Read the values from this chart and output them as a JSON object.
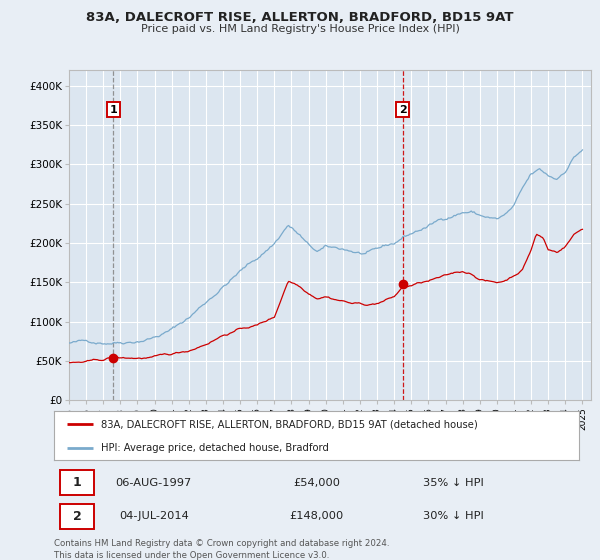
{
  "title": "83A, DALECROFT RISE, ALLERTON, BRADFORD, BD15 9AT",
  "subtitle": "Price paid vs. HM Land Registry's House Price Index (HPI)",
  "bg_color": "#e8eef5",
  "plot_bg_color": "#dce6f0",
  "red_color": "#cc0000",
  "blue_color": "#7aaacc",
  "legend_label_red": "83A, DALECROFT RISE, ALLERTON, BRADFORD, BD15 9AT (detached house)",
  "legend_label_blue": "HPI: Average price, detached house, Bradford",
  "marker1_date": 1997.6,
  "marker1_price": 54000,
  "marker1_text": "06-AUG-1997",
  "marker1_price_text": "£54,000",
  "marker1_hpi_text": "35% ↓ HPI",
  "marker2_date": 2014.5,
  "marker2_price": 148000,
  "marker2_text": "04-JUL-2014",
  "marker2_price_text": "£148,000",
  "marker2_hpi_text": "30% ↓ HPI",
  "xmin": 1995.0,
  "xmax": 2025.5,
  "ymin": 0,
  "ymax": 420000,
  "yticks": [
    0,
    50000,
    100000,
    150000,
    200000,
    250000,
    300000,
    350000,
    400000
  ],
  "ytick_labels": [
    "£0",
    "£50K",
    "£100K",
    "£150K",
    "£200K",
    "£250K",
    "£300K",
    "£350K",
    "£400K"
  ],
  "footer_text": "Contains HM Land Registry data © Crown copyright and database right 2024.\nThis data is licensed under the Open Government Licence v3.0."
}
